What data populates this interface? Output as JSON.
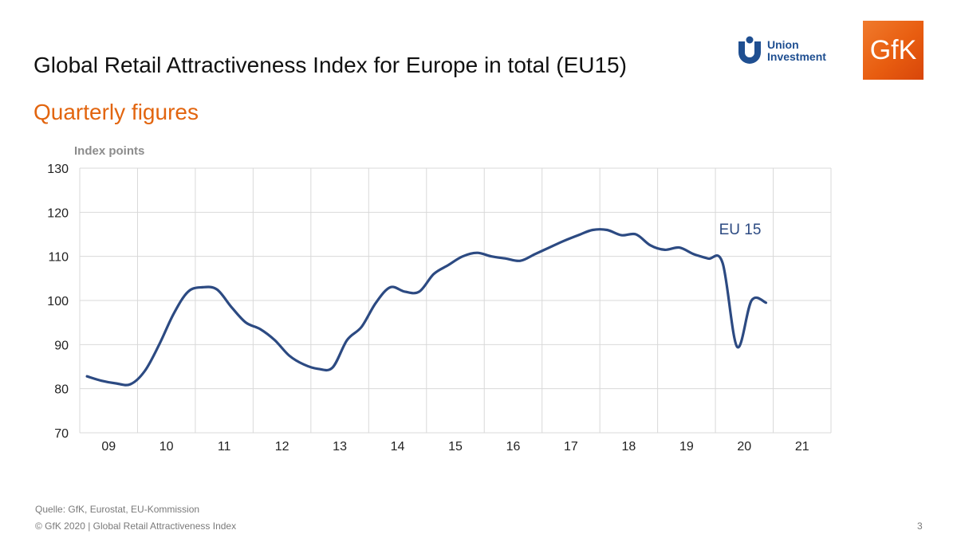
{
  "header": {
    "title": "Global Retail Attractiveness Index for Europe in total (EU15)",
    "subtitle": "Quarterly figures"
  },
  "logos": {
    "union_investment": {
      "line1": "Union",
      "line2": "Investment",
      "color": "#1f4f91"
    },
    "gfk": {
      "text": "GfK",
      "color": "#e8651a"
    }
  },
  "colors": {
    "line": "#2c4a82",
    "grid": "#d9d9d9",
    "subtitle": "#e2650f",
    "axis_label": "#8c8c8c"
  },
  "chart_data": {
    "type": "line",
    "ylabel": "Index points",
    "ylim": [
      70,
      130
    ],
    "yticks": [
      130,
      120,
      110,
      100,
      90,
      80,
      70
    ],
    "xlim": [
      0,
      52
    ],
    "x_tick_labels": [
      "09",
      "10",
      "11",
      "12",
      "13",
      "14",
      "15",
      "16",
      "17",
      "18",
      "19",
      "20",
      "21"
    ],
    "grid": true,
    "series": [
      {
        "name": "EU 15",
        "x": [
          0.5,
          1.5,
          2.5,
          3.5,
          4.5,
          5.5,
          6.5,
          7.5,
          8.5,
          9.5,
          10.5,
          11.5,
          12.5,
          13.5,
          14.5,
          15.5,
          16.5,
          17.5,
          18.5,
          19.5,
          20.5,
          21.5,
          22.5,
          23.5,
          24.5,
          25.5,
          26.5,
          27.5,
          28.5,
          29.5,
          30.5,
          31.5,
          32.5,
          33.5,
          34.5,
          35.5,
          36.5,
          37.5,
          38.5,
          39.5,
          40.5,
          41.5,
          42.5,
          43.5,
          44.5,
          45.5,
          46.5,
          47.5
        ],
        "values": [
          82.8,
          81.8,
          81.2,
          81.0,
          84.0,
          90.0,
          97.0,
          102.0,
          103.0,
          102.5,
          98.5,
          95.0,
          93.5,
          91.0,
          87.5,
          85.5,
          84.5,
          84.8,
          91.0,
          94.0,
          99.5,
          103.0,
          102.0,
          102.0,
          106.0,
          108.0,
          110.0,
          110.8,
          110.0,
          109.5,
          109.0,
          110.5,
          112.0,
          113.5,
          114.8,
          116.0,
          116.0,
          114.8,
          115.0,
          112.5,
          111.5,
          112.0,
          110.5,
          109.5,
          108.5,
          89.5,
          100.0,
          99.5
        ]
      }
    ],
    "annotation": "EU 15"
  },
  "footer": {
    "source": "Quelle: GfK, Eurostat, EU-Kommission",
    "copyright": "© GfK 2020 | Global Retail Attractiveness Index",
    "page_number": "3"
  }
}
